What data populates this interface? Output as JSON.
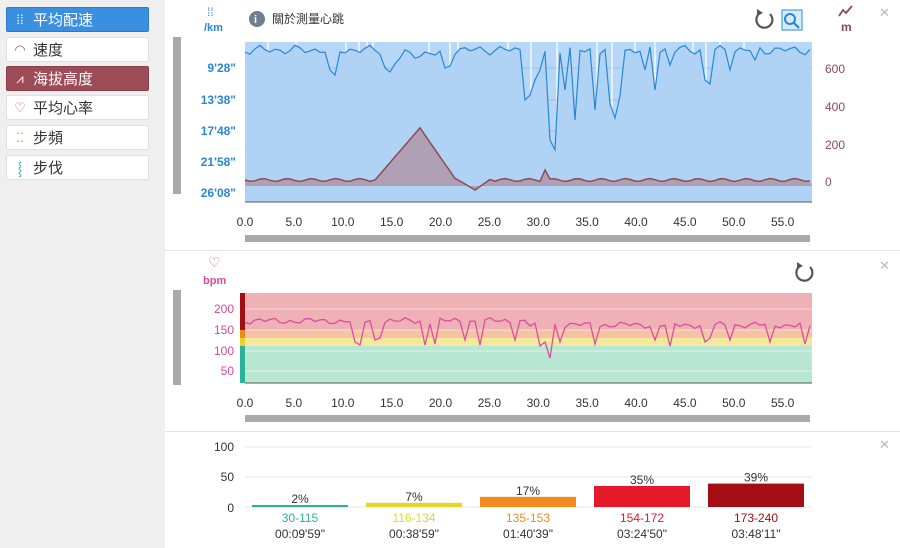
{
  "sidebar": {
    "items": [
      {
        "label": "平均配速",
        "icon": "footprints-icon",
        "state": "active-blue"
      },
      {
        "label": "速度",
        "icon": "speedometer-icon",
        "state": ""
      },
      {
        "label": "海拔高度",
        "icon": "elevation-icon",
        "state": "active-red"
      },
      {
        "label": "平均心率",
        "icon": "heart-icon",
        "state": ""
      },
      {
        "label": "步頻",
        "icon": "cadence-icon",
        "state": ""
      },
      {
        "label": "步伐",
        "icon": "stride-icon",
        "state": ""
      }
    ]
  },
  "pace_panel": {
    "left_unit": "/km",
    "right_unit": "m",
    "info_text": "關於測量心跳",
    "pace_ticks": [
      "9'28\"",
      "13'38\"",
      "17'48\"",
      "21'58\"",
      "26'08\""
    ],
    "elev_ticks": [
      "600",
      "400",
      "200",
      "0"
    ],
    "x_ticks": [
      "0.0",
      "5.0",
      "10.0",
      "15.0",
      "20.0",
      "25.0",
      "30.0",
      "35.0",
      "40.0",
      "45.0",
      "50.0",
      "55.0"
    ]
  },
  "hr_panel": {
    "unit": "bpm",
    "y_ticks": [
      "200",
      "150",
      "100",
      "50"
    ],
    "x_ticks": [
      "0.0",
      "5.0",
      "10.0",
      "15.0",
      "20.0",
      "25.0",
      "30.0",
      "35.0",
      "40.0",
      "45.0",
      "50.0",
      "55.0"
    ]
  },
  "zones_panel": {
    "y_ticks": [
      "100",
      "50",
      "0"
    ],
    "zones": [
      {
        "percent": "2%",
        "value": 2,
        "range": "30-115",
        "time": "00:09'59\"",
        "color": "#2bb39a"
      },
      {
        "percent": "7%",
        "value": 7,
        "range": "116-134",
        "time": "00:38'59\"",
        "color": "#e6d428"
      },
      {
        "percent": "17%",
        "value": 17,
        "range": "135-153",
        "time": "01:40'39\"",
        "color": "#f08a1e"
      },
      {
        "percent": "35%",
        "value": 35,
        "range": "154-172",
        "time": "03:24'50\"",
        "color": "#e6192a"
      },
      {
        "percent": "39%",
        "value": 39,
        "range": "173-240",
        "time": "03:48'11\"",
        "color": "#a30d14"
      }
    ]
  },
  "colors": {
    "pace_line": "#2b86d6",
    "pace_fill": "#b6d7f7",
    "elevation_line": "#8e4a55",
    "hr_line": "#d94fa0",
    "axis_label_blue": "#2b86d6",
    "axis_label_red": "#8e4a55"
  }
}
